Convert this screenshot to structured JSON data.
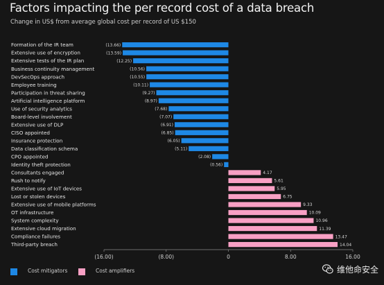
{
  "title": "Factors impacting the per record cost of a data breach",
  "subtitle": "Change in US$ from average global cost per record of US $150",
  "colors": {
    "background": "#161616",
    "mitigator": "#1e88e5",
    "amplifier": "#f8a0c4",
    "axis": "#8a8a8a"
  },
  "legend": {
    "mitigators_label": "Cost mitigators",
    "amplifiers_label": "Cost amplifiers"
  },
  "watermark": {
    "text": "维他命安全",
    "icon": "wechat-icon"
  },
  "chart_data": {
    "type": "bar",
    "orientation": "horizontal",
    "title": "Factors impacting the per record cost of a data breach",
    "subtitle": "Change in US$ from average global cost per record of US $150",
    "xlim": [
      -16,
      16
    ],
    "x_ticks": [
      -16,
      -8,
      0,
      8,
      16
    ],
    "x_tick_labels": [
      "(16.00)",
      "(8.00)",
      "0",
      "8.00",
      "16.00"
    ],
    "categories": [
      "Formation of the IR team",
      "Extensive use of encryption",
      "Extensive tests of the IR plan",
      "Business continuity management",
      "DevSecOps approach",
      "Employee training",
      "Participation in threat sharing",
      "Artificial intelligence platform",
      "Use of security analytics",
      "Board-level involvement",
      "Extensive use of DLP",
      "CISO appointed",
      "Insurance protection",
      "Data classification schema",
      "CPO appointed",
      "Identity theft protection",
      "Consultants engaged",
      "Rush to notify",
      "Extensive use of IoT devices",
      "Lost or stolen devices",
      "Extensive use of mobile platforms",
      "OT infrastructure",
      "System complexity",
      "Extensive cloud migration",
      "Compliance failures",
      "Third-party breach"
    ],
    "values": [
      -13.66,
      -13.59,
      -12.25,
      -10.56,
      -10.55,
      -10.11,
      -9.27,
      -8.97,
      -7.68,
      -7.07,
      -6.91,
      -6.85,
      -6.05,
      -5.11,
      -2.08,
      -0.56,
      4.17,
      5.61,
      5.95,
      6.75,
      9.33,
      10.09,
      10.96,
      11.39,
      13.47,
      14.04
    ],
    "value_labels": [
      "(13.66)",
      "(13.59)",
      "(12.25)",
      "(10.56)",
      "(10.55)",
      "(10.11)",
      "(9.27)",
      "(8.97)",
      "(7.68)",
      "(7.07)",
      "(6.91)",
      "(6.85)",
      "(6.05)",
      "(5.11)",
      "(2.08)",
      "(0.56)",
      "4.17",
      "5.61",
      "5.95",
      "6.75",
      "9.33",
      "10.09",
      "10.96",
      "11.39",
      "13.47",
      "14.04"
    ],
    "series": [
      {
        "name": "Cost mitigators",
        "color": "#1e88e5"
      },
      {
        "name": "Cost amplifiers",
        "color": "#f8a0c4"
      }
    ],
    "legend_position": "bottom-left",
    "grid": false
  }
}
